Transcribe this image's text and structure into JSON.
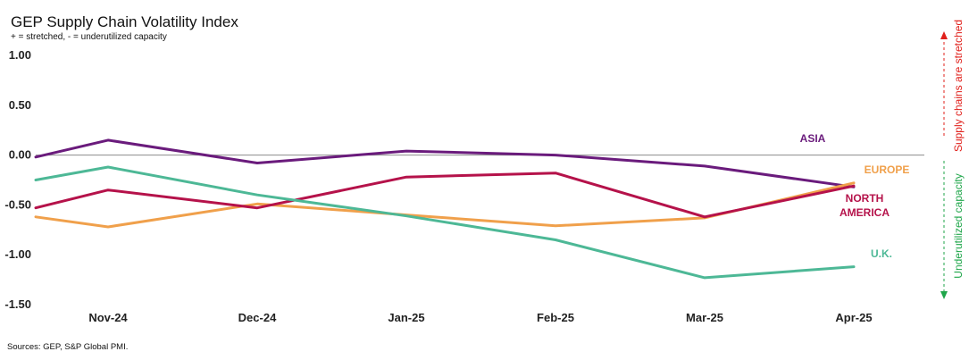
{
  "chart_data": {
    "type": "line",
    "title": "GEP Supply Chain Volatility Index",
    "subtitle": "+ = stretched, - = underutilized capacity",
    "source": "Sources: GEP, S&P Global PMI.",
    "categories": [
      "Nov-24",
      "Dec-24",
      "Jan-25",
      "Feb-25",
      "Mar-25",
      "Apr-25"
    ],
    "ylim": [
      -1.5,
      1.0
    ],
    "yticks": [
      "1.00",
      "0.50",
      "0.00",
      "-0.50",
      "-1.00",
      "-1.50"
    ],
    "grid": false,
    "series": [
      {
        "name": "ASIA",
        "label_lines": [
          "ASIA"
        ],
        "color": "#6a1b7c",
        "start": -0.02,
        "values": [
          0.15,
          -0.08,
          0.04,
          0.0,
          -0.11,
          -0.32
        ]
      },
      {
        "name": "EUROPE",
        "label_lines": [
          "EUROPE"
        ],
        "color": "#f0a04b",
        "start": -0.62,
        "values": [
          -0.72,
          -0.49,
          -0.6,
          -0.71,
          -0.63,
          -0.28
        ]
      },
      {
        "name": "NORTH AMERICA",
        "label_lines": [
          "NORTH",
          "AMERICA"
        ],
        "color": "#b5124a",
        "start": -0.53,
        "values": [
          -0.35,
          -0.53,
          -0.22,
          -0.18,
          -0.62,
          -0.31
        ]
      },
      {
        "name": "U.K.",
        "label_lines": [
          "U.K."
        ],
        "color": "#4db896",
        "start": -0.25,
        "values": [
          -0.12,
          -0.4,
          -0.61,
          -0.85,
          -1.23,
          -1.12
        ]
      }
    ],
    "annotations": {
      "up": {
        "text": "Supply chains are stretched",
        "color": "#e0201b"
      },
      "down": {
        "text": "Underutilized capacity",
        "color": "#1fa64a"
      }
    }
  }
}
